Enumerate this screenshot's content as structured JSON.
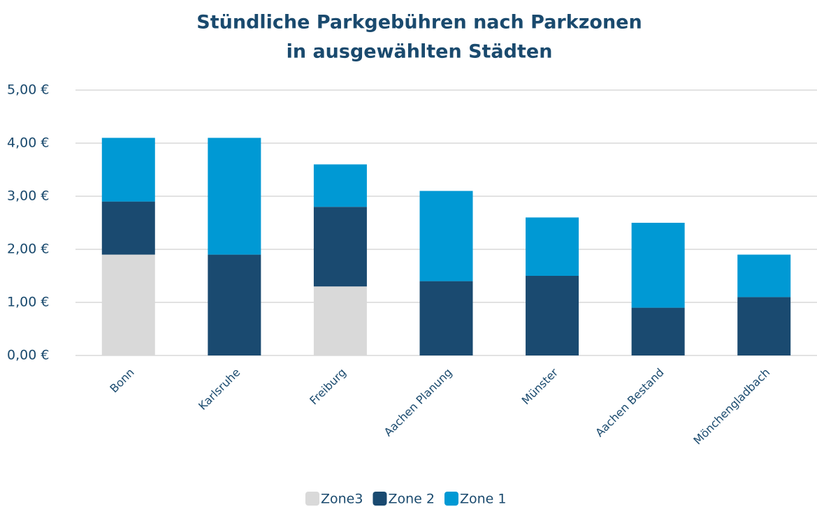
{
  "chart_data": {
    "type": "bar",
    "stacked": true,
    "title": [
      "Stündliche Parkgebühren nach Parkzonen",
      "in ausgewählten Städten"
    ],
    "categories": [
      "Bonn",
      "Karlsruhe",
      "Freiburg",
      "Aachen Planung",
      "Münster",
      "Aachen Bestand",
      "Mönchengladbach"
    ],
    "series": [
      {
        "name": "Zone3",
        "color": "#d9d9d9",
        "values": [
          1.9,
          0,
          1.3,
          0,
          0,
          0,
          0
        ]
      },
      {
        "name": "Zone 2",
        "color": "#1a4a70",
        "values": [
          1.0,
          1.9,
          1.5,
          1.4,
          1.5,
          0.9,
          1.1
        ]
      },
      {
        "name": "Zone 1",
        "color": "#0099d4",
        "values": [
          1.2,
          2.2,
          0.8,
          1.7,
          1.1,
          1.6,
          0.8
        ]
      }
    ],
    "ylim": [
      0,
      5
    ],
    "yticks": [
      {
        "value": 0,
        "label": "0,00 €"
      },
      {
        "value": 1,
        "label": "1,00 €"
      },
      {
        "value": 2,
        "label": "2,00 €"
      },
      {
        "value": 3,
        "label": "3,00 €"
      },
      {
        "value": 4,
        "label": "4,00 €"
      },
      {
        "value": 5,
        "label": "5,00 €"
      }
    ],
    "grid": true,
    "legend": "bottom"
  }
}
